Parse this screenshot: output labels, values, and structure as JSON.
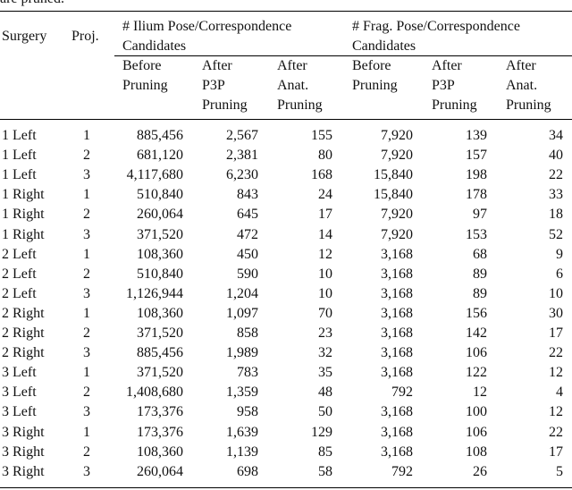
{
  "caption_fragment": "are pruned.",
  "table": {
    "group_headers": [
      [
        "# Ilium Pose/Correspondence",
        "Candidates"
      ],
      [
        "# Frag. Pose/Correspondence",
        "Candidates"
      ]
    ],
    "columns": [
      [
        "Surgery"
      ],
      [
        "Proj."
      ],
      [
        "Before",
        "Pruning"
      ],
      [
        "After",
        "P3P",
        "Pruning"
      ],
      [
        "After",
        "Anat.",
        "Pruning"
      ],
      [
        "Before",
        "Pruning"
      ],
      [
        "After",
        "P3P",
        "Pruning"
      ],
      [
        "After",
        "Anat.",
        "Pruning"
      ]
    ],
    "rows": [
      [
        "1 Left",
        "1",
        "885,456",
        "2,567",
        "155",
        "7,920",
        "139",
        "34"
      ],
      [
        "1 Left",
        "2",
        "681,120",
        "2,381",
        "80",
        "7,920",
        "157",
        "40"
      ],
      [
        "1 Left",
        "3",
        "4,117,680",
        "6,230",
        "168",
        "15,840",
        "198",
        "22"
      ],
      [
        "1 Right",
        "1",
        "510,840",
        "843",
        "24",
        "15,840",
        "178",
        "33"
      ],
      [
        "1 Right",
        "2",
        "260,064",
        "645",
        "17",
        "7,920",
        "97",
        "18"
      ],
      [
        "1 Right",
        "3",
        "371,520",
        "472",
        "14",
        "7,920",
        "153",
        "52"
      ],
      [
        "2 Left",
        "1",
        "108,360",
        "450",
        "12",
        "3,168",
        "68",
        "9"
      ],
      [
        "2 Left",
        "2",
        "510,840",
        "590",
        "10",
        "3,168",
        "89",
        "6"
      ],
      [
        "2 Left",
        "3",
        "1,126,944",
        "1,204",
        "10",
        "3,168",
        "89",
        "10"
      ],
      [
        "2 Right",
        "1",
        "108,360",
        "1,097",
        "70",
        "3,168",
        "156",
        "30"
      ],
      [
        "2 Right",
        "2",
        "371,520",
        "858",
        "23",
        "3,168",
        "142",
        "17"
      ],
      [
        "2 Right",
        "3",
        "885,456",
        "1,989",
        "32",
        "3,168",
        "106",
        "22"
      ],
      [
        "3 Left",
        "1",
        "371,520",
        "783",
        "35",
        "3,168",
        "122",
        "12"
      ],
      [
        "3 Left",
        "2",
        "1,408,680",
        "1,359",
        "48",
        "792",
        "12",
        "4"
      ],
      [
        "3 Left",
        "3",
        "173,376",
        "958",
        "50",
        "3,168",
        "100",
        "12"
      ],
      [
        "3 Right",
        "1",
        "173,376",
        "1,639",
        "129",
        "3,168",
        "106",
        "22"
      ],
      [
        "3 Right",
        "2",
        "108,360",
        "1,139",
        "85",
        "3,168",
        "108",
        "17"
      ],
      [
        "3 Right",
        "3",
        "260,064",
        "698",
        "58",
        "792",
        "26",
        "5"
      ]
    ]
  }
}
